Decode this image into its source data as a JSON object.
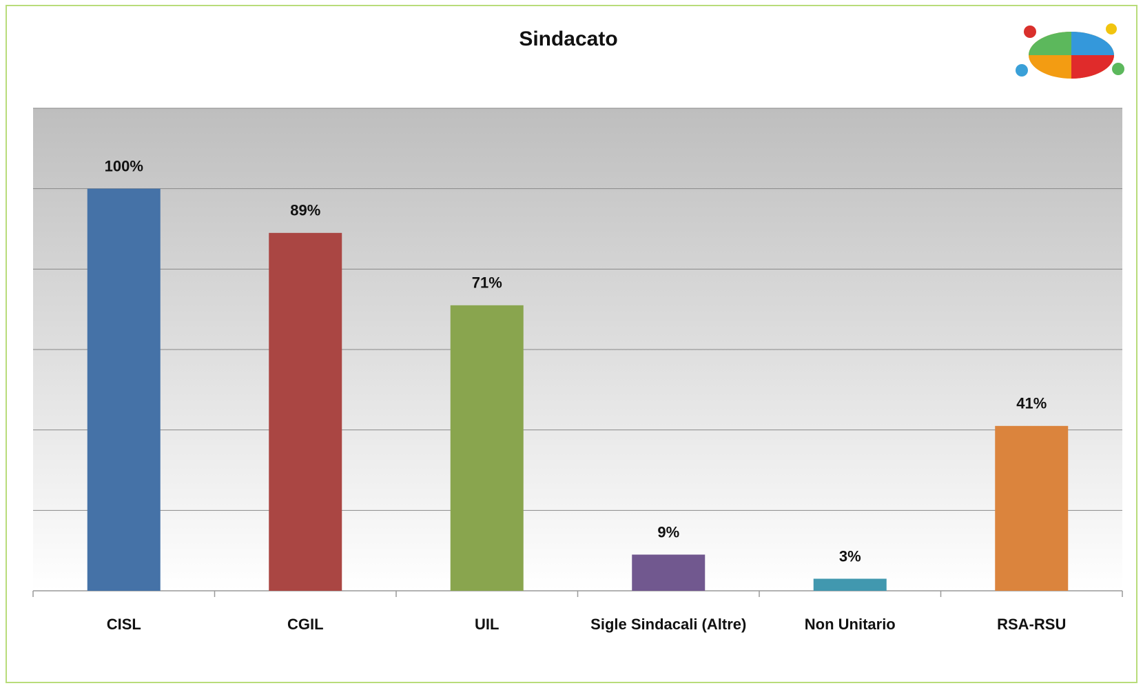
{
  "chart_data": {
    "type": "bar",
    "title": "Sindacato",
    "categories": [
      "CISL",
      "CGIL",
      "UIL",
      "Sigle Sindacali (Altre)",
      "Non Unitario",
      "RSA-RSU"
    ],
    "values": [
      100,
      89,
      71,
      9,
      3,
      41
    ],
    "value_labels": [
      "100%",
      "89%",
      "71%",
      "9%",
      "3%",
      "41%"
    ],
    "colors": [
      "#4572a7",
      "#aa4643",
      "#89a54e",
      "#71588f",
      "#4198af",
      "#db843d"
    ],
    "ylim": [
      0,
      120
    ],
    "yticks": [
      0,
      20,
      40,
      60,
      80,
      100,
      120
    ],
    "grid": true
  }
}
